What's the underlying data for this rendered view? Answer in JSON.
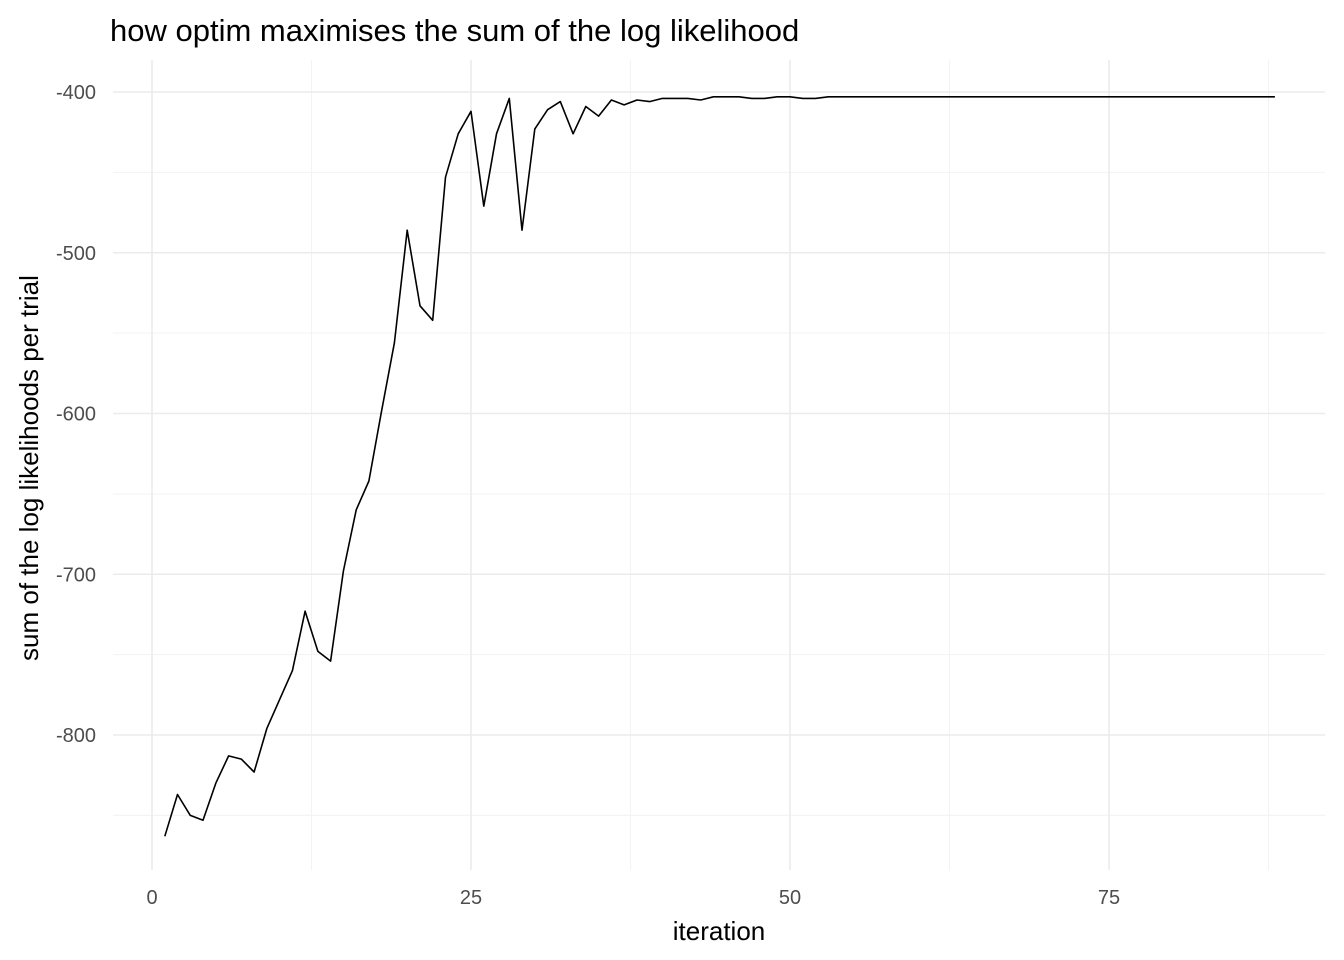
{
  "chart_data": {
    "type": "line",
    "title": "how optim maximises the sum of the log likelihood",
    "xlabel": "iteration",
    "ylabel": "sum of the log likelihoods per trial",
    "xlim": [
      0,
      88
    ],
    "ylim": [
      -400,
      -800
    ],
    "x_ticks": [
      0,
      25,
      50,
      75
    ],
    "y_ticks": [
      -400,
      -500,
      -600,
      -700,
      -800
    ],
    "x_tick_labels": [
      "0",
      "25",
      "50",
      "75"
    ],
    "y_tick_labels": [
      "-400",
      "-500",
      "-600",
      "-700",
      "-800"
    ],
    "grid": true,
    "legend": "none",
    "series": [
      {
        "color": "#000000",
        "x": [
          1,
          2,
          3,
          4,
          5,
          6,
          7,
          8,
          9,
          10,
          11,
          12,
          13,
          14,
          15,
          16,
          17,
          18,
          19,
          20,
          21,
          22,
          23,
          24,
          25,
          26,
          27,
          28,
          29,
          30,
          31,
          32,
          33,
          34,
          35,
          36,
          37,
          38,
          39,
          40,
          41,
          42,
          43,
          44,
          45,
          46,
          47,
          48,
          49,
          50,
          51,
          52,
          53,
          54,
          55,
          56,
          57,
          58,
          59,
          60,
          61,
          62,
          63,
          64,
          65,
          66,
          67,
          68,
          69,
          70,
          71,
          72,
          73,
          74,
          75,
          76,
          77,
          78,
          79,
          80,
          81,
          82,
          83,
          84,
          85,
          86,
          87,
          88
        ],
        "y": [
          -863,
          -837,
          -850,
          -853,
          -830,
          -813,
          -815,
          -823,
          -796,
          -778,
          -760,
          -723,
          -748,
          -754,
          -698,
          -660,
          -642,
          -598,
          -556,
          -486,
          -533,
          -542,
          -453,
          -426,
          -412,
          -471,
          -426,
          -404,
          -486,
          -423,
          -411,
          -406,
          -426,
          -409,
          -415,
          -405,
          -408,
          -405,
          -406,
          -404,
          -404,
          -404,
          -405,
          -403,
          -403,
          -403,
          -404,
          -404,
          -403,
          -403,
          -404,
          -404,
          -403,
          -403,
          -403,
          -403,
          -403,
          -403,
          -403,
          -403,
          -403,
          -403,
          -403,
          -403,
          -403,
          -403,
          -403,
          -403,
          -403,
          -403,
          -403,
          -403,
          -403,
          -403,
          -403,
          -403,
          -403,
          -403,
          -403,
          -403,
          -403,
          -403,
          -403,
          -403,
          -403,
          -403,
          -403,
          -403
        ]
      }
    ]
  }
}
